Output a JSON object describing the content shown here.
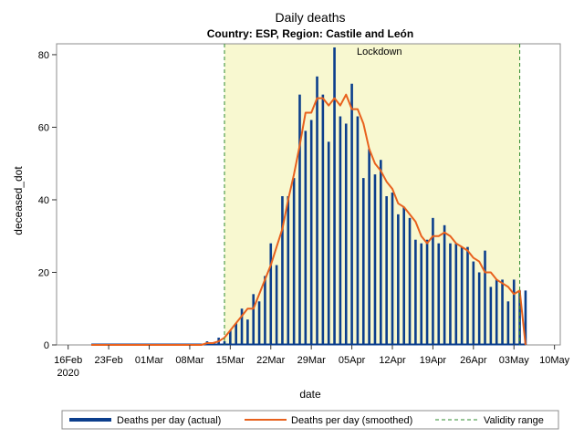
{
  "chart_data": {
    "type": "bar",
    "title": "Daily deaths",
    "subtitle": "Country: ESP, Region: Castile and León",
    "xlabel": "date",
    "ylabel": "deceased_dot",
    "ylim": [
      0,
      83
    ],
    "yticks": [
      0,
      20,
      40,
      60,
      80
    ],
    "x_start": "2020-02-14",
    "x_end": "2020-05-11",
    "xticks": [
      {
        "date": "2020-02-16",
        "label": "16Feb",
        "label2": "2020"
      },
      {
        "date": "2020-02-23",
        "label": "23Feb"
      },
      {
        "date": "2020-03-01",
        "label": "01Mar"
      },
      {
        "date": "2020-03-08",
        "label": "08Mar"
      },
      {
        "date": "2020-03-15",
        "label": "15Mar"
      },
      {
        "date": "2020-03-22",
        "label": "22Mar"
      },
      {
        "date": "2020-03-29",
        "label": "29Mar"
      },
      {
        "date": "2020-04-05",
        "label": "05Apr"
      },
      {
        "date": "2020-04-12",
        "label": "12Apr"
      },
      {
        "date": "2020-04-19",
        "label": "19Apr"
      },
      {
        "date": "2020-04-26",
        "label": "26Apr"
      },
      {
        "date": "2020-05-03",
        "label": "03May"
      },
      {
        "date": "2020-05-10",
        "label": "10May"
      }
    ],
    "lockdown": {
      "label": "Lockdown",
      "start": "2020-03-14",
      "end": "2020-05-04",
      "color": "#f8f8d0"
    },
    "validity_lines": [
      "2020-03-14",
      "2020-05-04"
    ],
    "colors": {
      "bars": "#0b3e8c",
      "smoothed": "#e8611d",
      "validity": "#2e8b2e",
      "lockdown_fill": "#f8f8d0"
    },
    "legend_position": "bottom",
    "legend": [
      {
        "label": "Deaths per day (actual)",
        "style": "thick-line"
      },
      {
        "label": "Deaths per day (smoothed)",
        "style": "line"
      },
      {
        "label": "Validity range",
        "style": "dashed"
      }
    ],
    "series_actual": {
      "name": "Deaths per day (actual)",
      "data": [
        [
          "2020-02-20",
          0
        ],
        [
          "2020-02-21",
          0
        ],
        [
          "2020-02-22",
          0
        ],
        [
          "2020-02-23",
          0
        ],
        [
          "2020-02-24",
          0
        ],
        [
          "2020-02-25",
          0
        ],
        [
          "2020-02-26",
          0
        ],
        [
          "2020-02-27",
          0
        ],
        [
          "2020-02-28",
          0
        ],
        [
          "2020-02-29",
          0
        ],
        [
          "2020-03-01",
          0
        ],
        [
          "2020-03-02",
          0
        ],
        [
          "2020-03-03",
          0
        ],
        [
          "2020-03-04",
          0
        ],
        [
          "2020-03-05",
          0
        ],
        [
          "2020-03-06",
          0
        ],
        [
          "2020-03-07",
          0
        ],
        [
          "2020-03-08",
          0
        ],
        [
          "2020-03-09",
          0
        ],
        [
          "2020-03-10",
          0
        ],
        [
          "2020-03-11",
          1
        ],
        [
          "2020-03-12",
          0
        ],
        [
          "2020-03-13",
          2
        ],
        [
          "2020-03-14",
          1
        ],
        [
          "2020-03-15",
          4
        ],
        [
          "2020-03-16",
          6
        ],
        [
          "2020-03-17",
          10
        ],
        [
          "2020-03-18",
          7
        ],
        [
          "2020-03-19",
          14
        ],
        [
          "2020-03-20",
          12
        ],
        [
          "2020-03-21",
          19
        ],
        [
          "2020-03-22",
          28
        ],
        [
          "2020-03-23",
          22
        ],
        [
          "2020-03-24",
          41
        ],
        [
          "2020-03-25",
          41
        ],
        [
          "2020-03-26",
          46
        ],
        [
          "2020-03-27",
          69
        ],
        [
          "2020-03-28",
          59
        ],
        [
          "2020-03-29",
          62
        ],
        [
          "2020-03-30",
          74
        ],
        [
          "2020-03-31",
          69
        ],
        [
          "2020-04-01",
          56
        ],
        [
          "2020-04-02",
          82
        ],
        [
          "2020-04-03",
          63
        ],
        [
          "2020-04-04",
          61
        ],
        [
          "2020-04-05",
          72
        ],
        [
          "2020-04-06",
          63
        ],
        [
          "2020-04-07",
          46
        ],
        [
          "2020-04-08",
          54
        ],
        [
          "2020-04-09",
          47
        ],
        [
          "2020-04-10",
          51
        ],
        [
          "2020-04-11",
          41
        ],
        [
          "2020-04-12",
          42
        ],
        [
          "2020-04-13",
          36
        ],
        [
          "2020-04-14",
          38
        ],
        [
          "2020-04-15",
          35
        ],
        [
          "2020-04-16",
          29
        ],
        [
          "2020-04-17",
          28
        ],
        [
          "2020-04-18",
          29
        ],
        [
          "2020-04-19",
          35
        ],
        [
          "2020-04-20",
          28
        ],
        [
          "2020-04-21",
          33
        ],
        [
          "2020-04-22",
          28
        ],
        [
          "2020-04-23",
          28
        ],
        [
          "2020-04-24",
          27
        ],
        [
          "2020-04-25",
          27
        ],
        [
          "2020-04-26",
          23
        ],
        [
          "2020-04-27",
          20
        ],
        [
          "2020-04-28",
          26
        ],
        [
          "2020-04-29",
          16
        ],
        [
          "2020-04-30",
          18
        ],
        [
          "2020-05-01",
          18
        ],
        [
          "2020-05-02",
          12
        ],
        [
          "2020-05-03",
          18
        ],
        [
          "2020-05-04",
          15
        ],
        [
          "2020-05-05",
          15
        ]
      ]
    },
    "series_smoothed": {
      "name": "Deaths per day (smoothed)",
      "data": [
        [
          "2020-02-20",
          0
        ],
        [
          "2020-03-09",
          0
        ],
        [
          "2020-03-10",
          0
        ],
        [
          "2020-03-11",
          0.5
        ],
        [
          "2020-03-12",
          0.5
        ],
        [
          "2020-03-13",
          1
        ],
        [
          "2020-03-14",
          2
        ],
        [
          "2020-03-15",
          4
        ],
        [
          "2020-03-16",
          6
        ],
        [
          "2020-03-17",
          8
        ],
        [
          "2020-03-18",
          10
        ],
        [
          "2020-03-19",
          10
        ],
        [
          "2020-03-20",
          14
        ],
        [
          "2020-03-21",
          18
        ],
        [
          "2020-03-22",
          22
        ],
        [
          "2020-03-23",
          27
        ],
        [
          "2020-03-24",
          32
        ],
        [
          "2020-03-25",
          40
        ],
        [
          "2020-03-26",
          47
        ],
        [
          "2020-03-27",
          55
        ],
        [
          "2020-03-28",
          64
        ],
        [
          "2020-03-29",
          64
        ],
        [
          "2020-03-30",
          68
        ],
        [
          "2020-03-31",
          68
        ],
        [
          "2020-04-01",
          66
        ],
        [
          "2020-04-02",
          68
        ],
        [
          "2020-04-03",
          66
        ],
        [
          "2020-04-04",
          69
        ],
        [
          "2020-04-05",
          65
        ],
        [
          "2020-04-06",
          65
        ],
        [
          "2020-04-07",
          61
        ],
        [
          "2020-04-08",
          54
        ],
        [
          "2020-04-09",
          50
        ],
        [
          "2020-04-10",
          48
        ],
        [
          "2020-04-11",
          45
        ],
        [
          "2020-04-12",
          43
        ],
        [
          "2020-04-13",
          39
        ],
        [
          "2020-04-14",
          38
        ],
        [
          "2020-04-15",
          36
        ],
        [
          "2020-04-16",
          34
        ],
        [
          "2020-04-17",
          30
        ],
        [
          "2020-04-18",
          28
        ],
        [
          "2020-04-19",
          30
        ],
        [
          "2020-04-20",
          30
        ],
        [
          "2020-04-21",
          31
        ],
        [
          "2020-04-22",
          30
        ],
        [
          "2020-04-23",
          28
        ],
        [
          "2020-04-24",
          27
        ],
        [
          "2020-04-25",
          26
        ],
        [
          "2020-04-26",
          24
        ],
        [
          "2020-04-27",
          23
        ],
        [
          "2020-04-28",
          20
        ],
        [
          "2020-04-29",
          20
        ],
        [
          "2020-04-30",
          18
        ],
        [
          "2020-05-01",
          17
        ],
        [
          "2020-05-02",
          16
        ],
        [
          "2020-05-03",
          14
        ],
        [
          "2020-05-04",
          15
        ],
        [
          "2020-05-05",
          0
        ]
      ]
    }
  }
}
